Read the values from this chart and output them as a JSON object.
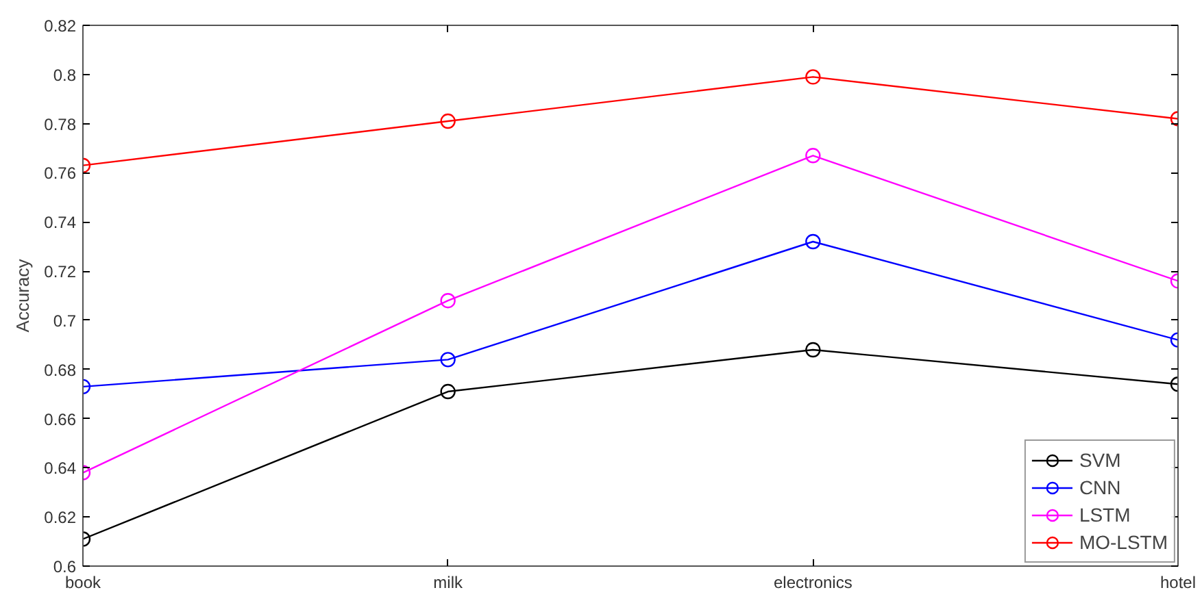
{
  "chart_data": {
    "type": "line",
    "ylabel": "Accuracy",
    "categories": [
      "book",
      "milk",
      "electronics",
      "hotel"
    ],
    "series": [
      {
        "name": "SVM",
        "color": "#000000",
        "values": [
          0.611,
          0.671,
          0.688,
          0.674
        ]
      },
      {
        "name": "CNN",
        "color": "#0000ff",
        "values": [
          0.673,
          0.684,
          0.732,
          0.692
        ]
      },
      {
        "name": "LSTM",
        "color": "#ff00ff",
        "values": [
          0.638,
          0.708,
          0.767,
          0.716
        ]
      },
      {
        "name": "MO-LSTM",
        "color": "#ff0000",
        "values": [
          0.763,
          0.781,
          0.799,
          0.782
        ]
      }
    ],
    "ylim": [
      0.6,
      0.82
    ],
    "yticks": [
      0.6,
      0.62,
      0.64,
      0.66,
      0.68,
      0.7,
      0.72,
      0.74,
      0.76,
      0.78,
      0.8,
      0.82
    ],
    "grid": false,
    "legend": "bottom right",
    "marker": "circle",
    "line_style": "solid"
  }
}
